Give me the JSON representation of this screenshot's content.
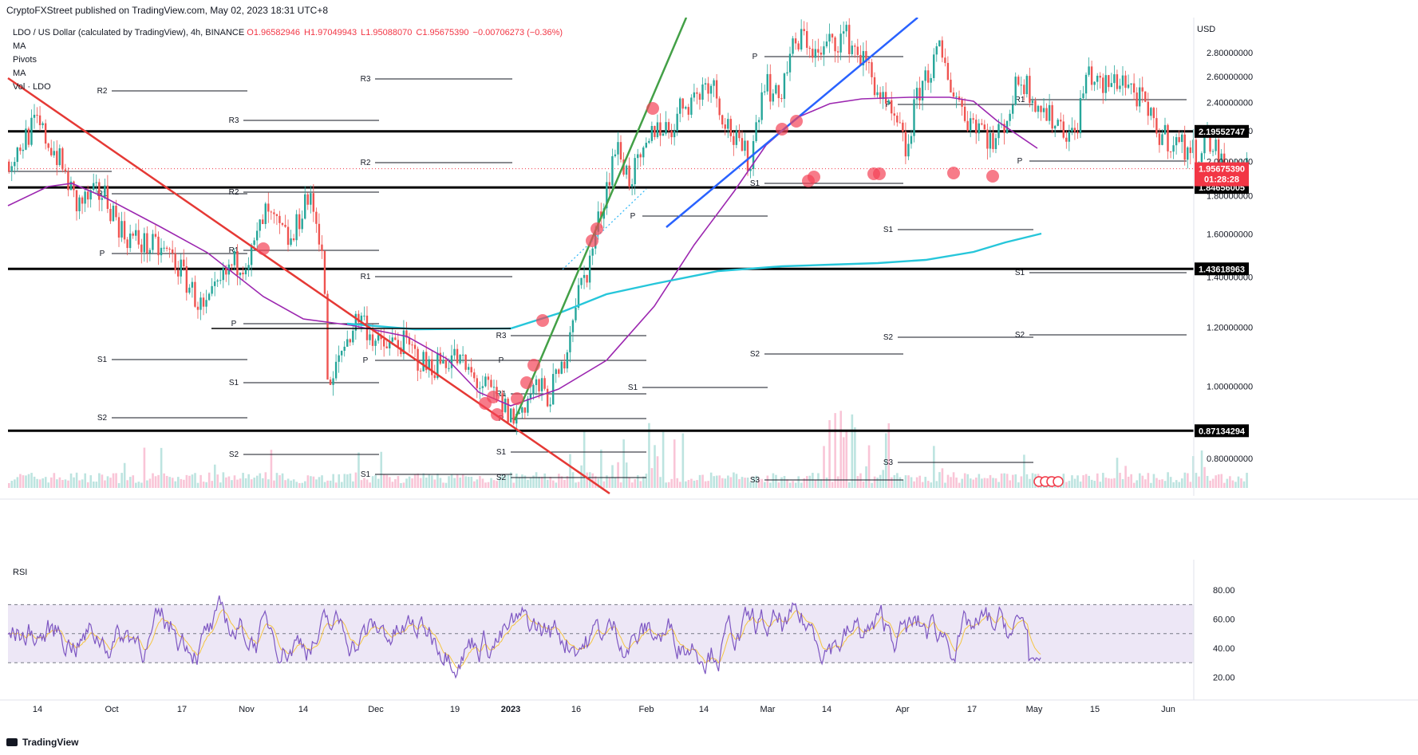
{
  "header": {
    "publisher_line": "CryptoFXStreet published on TradingView.com, May 02, 2023 18:31 UTC+8"
  },
  "legend": {
    "title": "LDO / US Dollar (calculated by TradingView), 4h, BINANCE",
    "open": "O1.96582946",
    "high": "H1.97049943",
    "low": "L1.95088070",
    "close": "C1.95675390",
    "change": "−0.00706273 (−0.36%)",
    "indicators": [
      "MA",
      "Pivots",
      "MA",
      "Vol · LDO"
    ]
  },
  "colors": {
    "bull": "#26a69a",
    "bear": "#ef5350",
    "trend_red": "#e53935",
    "trend_green": "#43a047",
    "trend_blue": "#2962ff",
    "ma_purple": "#9c27b0",
    "ma_cyan": "#26c6da",
    "rsi": "#7e57c2",
    "rsi_ma": "#f5c542",
    "rsi_band": "#ede7f6",
    "marker": "#f44357"
  },
  "price_axis": {
    "currency": "USD",
    "ticks": [
      "2.80000000",
      "2.60000000",
      "2.40000000",
      "2.20000000",
      "2.00000000",
      "1.80000000",
      "1.60000000",
      "1.40000000",
      "1.20000000",
      "1.00000000",
      "0.80000000"
    ]
  },
  "time_axis": {
    "ticks": [
      "14",
      "Oct",
      "17",
      "Nov",
      "14",
      "Dec",
      "19",
      "2023",
      "16",
      "Feb",
      "14",
      "Mar",
      "14",
      "Apr",
      "17",
      "May",
      "15",
      "Jun"
    ]
  },
  "levels": [
    {
      "label": "2.19552747",
      "price": 2.19552747
    },
    {
      "label": "1.84656005",
      "price": 1.84656005
    },
    {
      "label": "1.43618963",
      "price": 1.43618963
    },
    {
      "label": "0.87134294",
      "price": 0.87134294
    }
  ],
  "last_price": {
    "label": "1.95675390",
    "countdown": "01:28:28",
    "price": 1.9567539
  },
  "rsi": {
    "label": "RSI",
    "ticks": [
      "80.00",
      "60.00",
      "40.00",
      "20.00"
    ],
    "upper": 70,
    "lower": 30,
    "last": 32
  },
  "footer": {
    "brand": "TradingView"
  },
  "chart_data": {
    "type": "candlestick",
    "title": "LDO / US Dollar (calculated by TradingView), 4h, BINANCE",
    "interval": "4h",
    "ylim": [
      0.72,
      3.0
    ],
    "log_scale": true,
    "x": [
      "Sep 14",
      "Oct 1",
      "Oct 17",
      "Nov 1",
      "Nov 14",
      "Dec 1",
      "Dec 19",
      "2023-01-01",
      "Jan 16",
      "Feb 1",
      "Feb 14",
      "Mar 1",
      "Mar 14",
      "Apr 1",
      "Apr 17",
      "May 1"
    ],
    "close_approx": [
      2.15,
      1.55,
      1.4,
      1.6,
      1.05,
      1.05,
      0.95,
      1.02,
      2.0,
      2.35,
      2.75,
      2.9,
      2.15,
      2.2,
      2.5,
      1.96
    ],
    "horizontal_levels": [
      2.19552747,
      1.84656005,
      1.43618963,
      0.87134294
    ],
    "indicators": [
      "MA",
      "Pivots",
      "MA",
      "Vol · LDO",
      "RSI"
    ]
  }
}
